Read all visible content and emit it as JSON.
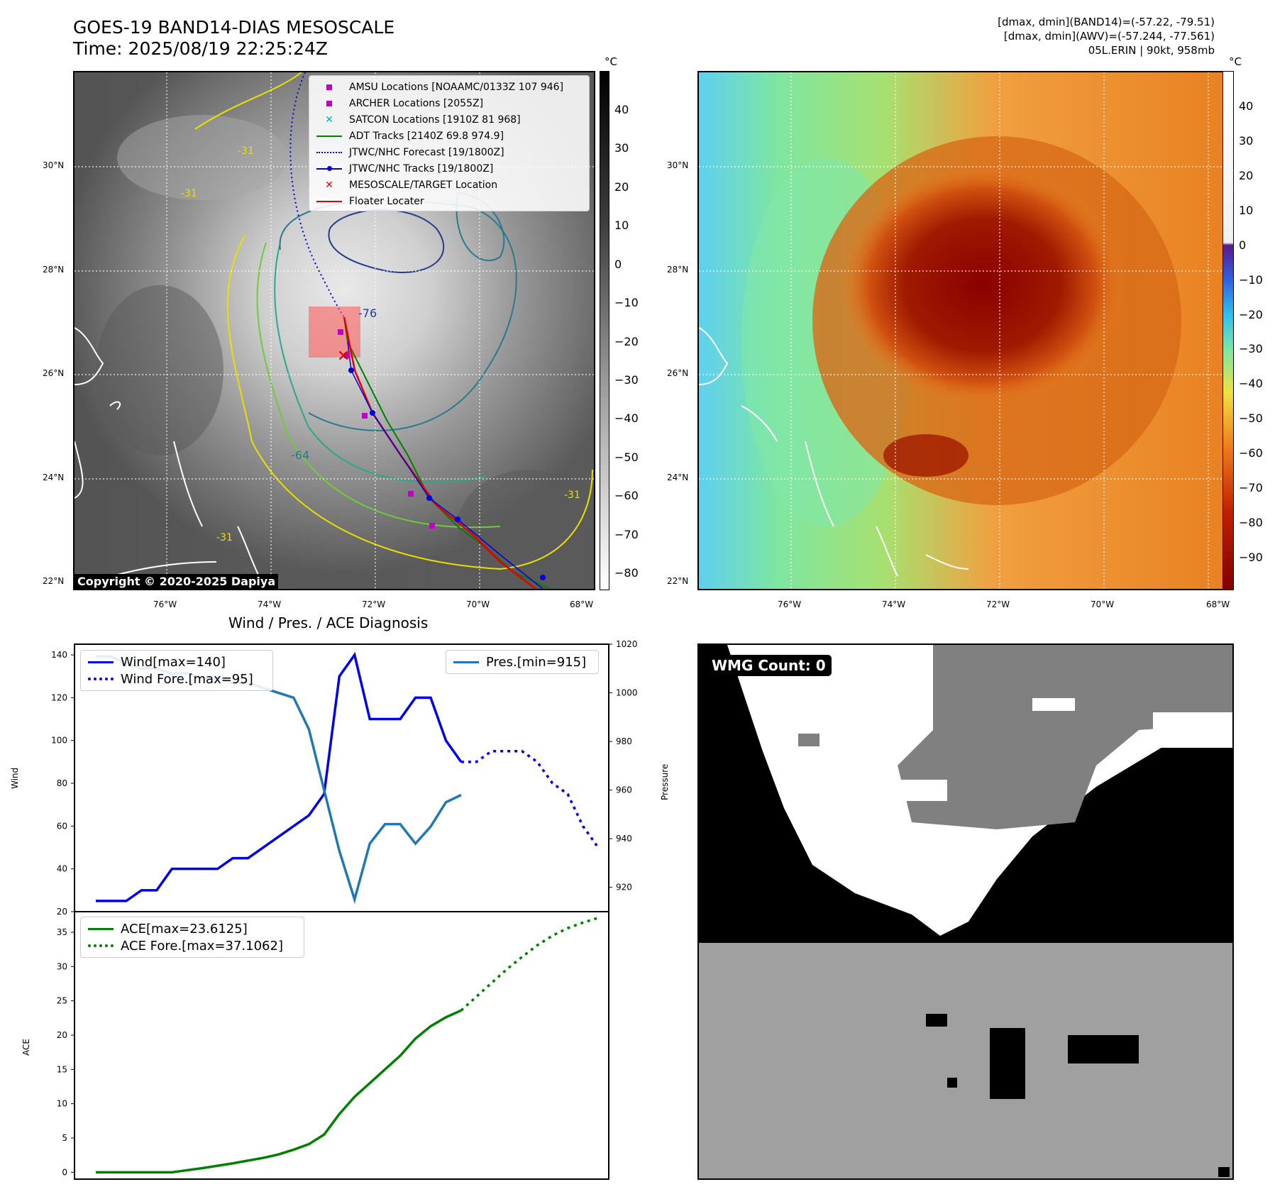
{
  "header": {
    "title_line1": "GOES-19 BAND14-DIAS MESOSCALE",
    "title_line2": "Time: 2025/08/19 22:25:24Z",
    "right_line1": "[dmax, dmin](BAND14)=(-57.22, -79.51)",
    "right_line2": "[dmax, dmin](AWV)=(-57.244, -77.561)",
    "right_line3": "05L.ERIN | 90kt, 958mb"
  },
  "map_axes": {
    "lat_ticks": [
      "30°N",
      "28°N",
      "26°N",
      "24°N",
      "22°N"
    ],
    "lon_ticks": [
      "76°W",
      "74°W",
      "72°W",
      "70°W",
      "68°W"
    ]
  },
  "colorbar_left": {
    "unit": "°C",
    "ticks": [
      "40",
      "30",
      "20",
      "10",
      "0",
      "−10",
      "−20",
      "−30",
      "−40",
      "−50",
      "−60",
      "−70",
      "−80"
    ]
  },
  "colorbar_right": {
    "unit": "°C",
    "ticks": [
      "40",
      "30",
      "20",
      "10",
      "0",
      "−10",
      "−20",
      "−30",
      "−40",
      "−50",
      "−60",
      "−70",
      "−80",
      "−90"
    ]
  },
  "map_legend": [
    {
      "label": "AMSU Locations [NOAAMC/0133Z 107 946]",
      "color": "#c000c0",
      "marker": "square"
    },
    {
      "label": "ARCHER Locations [2055Z]",
      "color": "#c000c0",
      "marker": "square"
    },
    {
      "label": "SATCON Locations [1910Z 81 968]",
      "color": "#00b0b0",
      "marker": "x"
    },
    {
      "label": "ADT Tracks [2140Z 69.8 974.9]",
      "color": "#008000",
      "marker": "line"
    },
    {
      "label": "JTWC/NHC Forecast [19/1800Z]",
      "color": "#0000e0",
      "marker": "dotted"
    },
    {
      "label": "JTWC/NHC Tracks [19/1800Z]",
      "color": "#0000e0",
      "marker": "dotline"
    },
    {
      "label": "MESOSCALE/TARGET Location",
      "color": "#e00000",
      "marker": "x"
    },
    {
      "label": "Floater Locater",
      "color": "#e00000",
      "marker": "line"
    }
  ],
  "contour_labels": [
    "-31",
    "-31",
    "-76",
    "-64",
    "-31",
    "-31"
  ],
  "copyright": "Copyright © 2020-2025 Dapiya",
  "wmg_label": "WMG Count: 0",
  "colors": {
    "wind": "#0000ee",
    "pressure": "#1f77b4",
    "ace": "#008000",
    "track_red": "#e00000"
  },
  "chart_data": [
    {
      "type": "line",
      "title": "Wind / Pres. / ACE Diagnosis",
      "ylabel": "Wind",
      "ylabel_right": "Pressure",
      "ylim": [
        20,
        145
      ],
      "ylim_right": [
        910,
        1020
      ],
      "yticks": [
        20,
        40,
        60,
        80,
        100,
        120,
        140
      ],
      "yticks_right": [
        920,
        940,
        960,
        980,
        1000,
        1020
      ],
      "legend_left": [
        "Wind[max=140]",
        "Wind Fore.[max=95]"
      ],
      "legend_right": [
        "Pres.[min=915]"
      ],
      "x_index_range": [
        0,
        33
      ],
      "series": [
        {
          "name": "Wind[max=140]",
          "axis": "left",
          "style": "solid",
          "x": [
            0,
            1,
            2,
            3,
            4,
            5,
            6,
            7,
            8,
            9,
            10,
            11,
            12,
            13,
            14,
            15,
            16,
            17,
            18,
            19,
            20,
            21,
            22,
            23,
            24
          ],
          "values": [
            25,
            25,
            25,
            30,
            30,
            40,
            40,
            40,
            40,
            45,
            45,
            50,
            55,
            60,
            65,
            75,
            130,
            140,
            110,
            110,
            110,
            120,
            120,
            100,
            90
          ]
        },
        {
          "name": "Wind Fore.[max=95]",
          "axis": "left",
          "style": "dotted",
          "x": [
            24,
            25,
            26,
            27,
            28,
            29,
            30,
            31,
            32,
            33
          ],
          "values": [
            90,
            90,
            95,
            95,
            95,
            90,
            80,
            75,
            60,
            50
          ]
        },
        {
          "name": "Pres.[min=915]",
          "axis": "right",
          "style": "solid",
          "x": [
            0,
            1,
            2,
            3,
            4,
            5,
            6,
            7,
            8,
            9,
            10,
            11,
            12,
            13,
            14,
            15,
            16,
            17,
            18,
            19,
            20,
            21,
            22,
            23,
            24
          ],
          "values": [
            1015,
            1015,
            1012,
            1010,
            1010,
            1008,
            1008,
            1006,
            1006,
            1004,
            1004,
            1002,
            1000,
            998,
            985,
            960,
            935,
            915,
            938,
            946,
            946,
            938,
            945,
            955,
            958
          ]
        }
      ]
    },
    {
      "type": "line",
      "ylabel": "ACE",
      "ylim": [
        -1,
        38
      ],
      "yticks": [
        0,
        5,
        10,
        15,
        20,
        25,
        30,
        35
      ],
      "legend": [
        "ACE[max=23.6125]",
        "ACE Fore.[max=37.1062]"
      ],
      "x_index_range": [
        0,
        33
      ],
      "series": [
        {
          "name": "ACE[max=23.6125]",
          "style": "solid",
          "x": [
            0,
            2,
            4,
            5,
            7,
            9,
            11,
            12,
            13,
            14,
            15,
            16,
            17,
            18,
            19,
            20,
            21,
            22,
            23,
            24
          ],
          "values": [
            0,
            0,
            0,
            0,
            0.6,
            1.3,
            2.1,
            2.6,
            3.3,
            4.1,
            5.5,
            8.5,
            11,
            13,
            15,
            17,
            19.5,
            21.3,
            22.6,
            23.6
          ]
        },
        {
          "name": "ACE Fore.[max=37.1062]",
          "style": "dotted",
          "x": [
            24,
            25,
            26,
            27,
            28,
            29,
            30,
            31,
            32,
            33
          ],
          "values": [
            23.6,
            25.6,
            27.6,
            29.6,
            31.4,
            33.1,
            34.5,
            35.6,
            36.4,
            37.1
          ]
        }
      ]
    }
  ]
}
